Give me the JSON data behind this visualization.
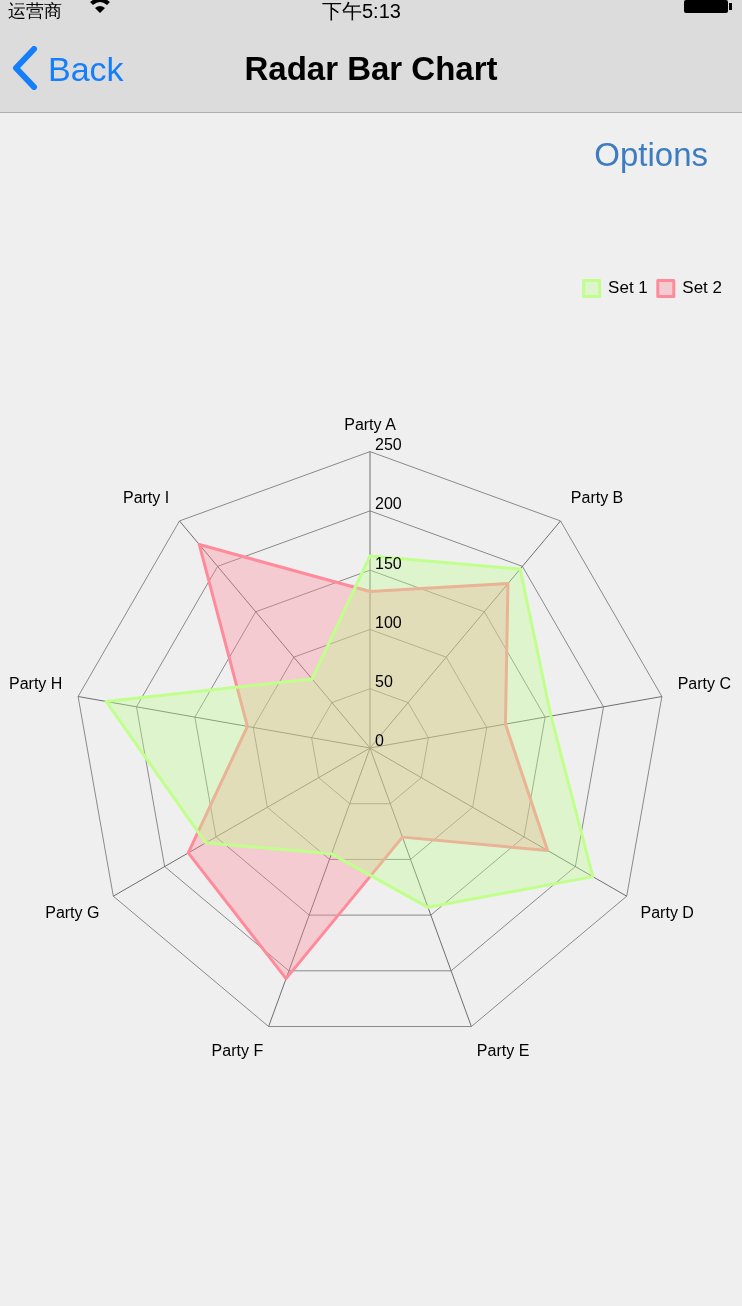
{
  "chart_data": {
    "type": "radar",
    "title": "Radar Bar Chart",
    "annotations": [
      "运营商",
      "下午5:13",
      "Back",
      "Options"
    ],
    "categories": [
      "Party A",
      "Party B",
      "Party C",
      "Party D",
      "Party E",
      "Party F",
      "Party G",
      "Party H",
      "Party I"
    ],
    "ylim": [
      0,
      250
    ],
    "yticks": [
      0,
      50,
      100,
      150,
      200,
      250
    ],
    "grid": true,
    "legend": "top right",
    "marker": "none",
    "series": [
      {
        "name": "Set 1",
        "color": "#c0ff8c",
        "values": [
          162,
          197,
          155,
          217,
          143,
          95,
          160,
          226,
          76
        ]
      },
      {
        "name": "Set 2",
        "color": "#ff8a9a",
        "values": [
          132,
          181,
          116,
          173,
          80,
          207,
          177,
          105,
          224
        ]
      }
    ]
  }
}
